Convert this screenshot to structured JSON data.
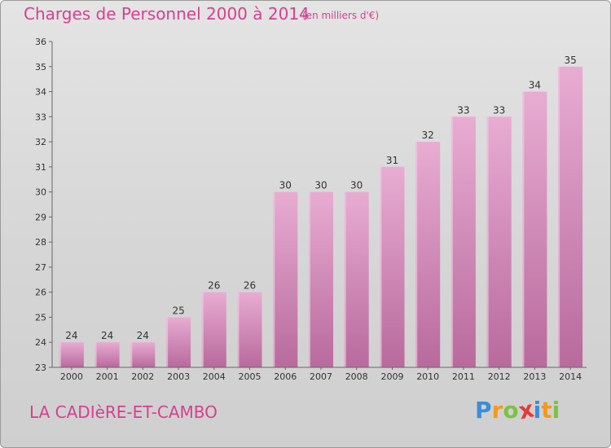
{
  "chart_data": {
    "type": "bar",
    "title": "Charges de Personnel 2000 à 2014",
    "subtitle": "(en milliers d'€)",
    "categories": [
      "2000",
      "2001",
      "2002",
      "2003",
      "2004",
      "2005",
      "2006",
      "2007",
      "2008",
      "2009",
      "2010",
      "2011",
      "2012",
      "2013",
      "2014"
    ],
    "values": [
      24,
      24,
      24,
      25,
      26,
      26,
      30,
      30,
      30,
      31,
      32,
      33,
      33,
      34,
      35
    ],
    "ylim": [
      23,
      36
    ],
    "yticks": [
      23,
      24,
      25,
      26,
      27,
      28,
      29,
      30,
      31,
      32,
      33,
      34,
      35,
      36
    ],
    "grid": false,
    "bar_color": "#cd84b3",
    "bar_highlight": "#e8acd2"
  },
  "commune": "LA CADIèRE-ET-CAMBO",
  "logo": {
    "letters": [
      "P",
      "r",
      "o",
      "x",
      "i",
      "t",
      "i"
    ],
    "colors": [
      "#3a8ed8",
      "#f39a1c",
      "#7cc242",
      "#e53935",
      "#3a8ed8",
      "#f39a1c",
      "#7cc242"
    ]
  },
  "colors": {
    "accent": "#d6408f"
  }
}
